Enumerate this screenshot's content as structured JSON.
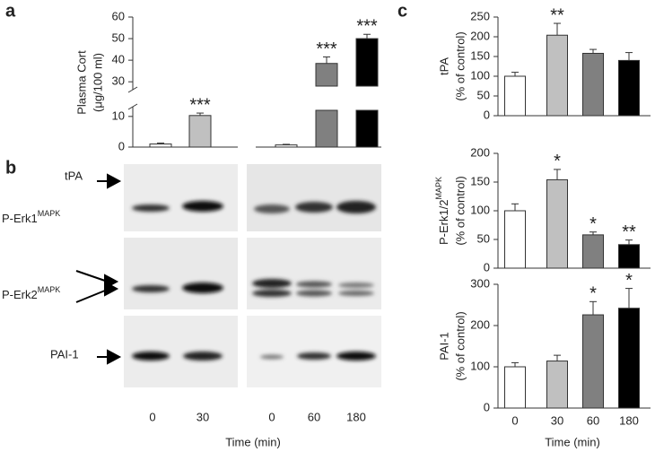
{
  "panels": [
    "a",
    "b",
    "c"
  ],
  "chart_data": [
    {
      "type": "bar",
      "ylabel": [
        "Plasma Cort",
        "(μg/100 ml)"
      ],
      "categories": [
        null,
        null,
        null,
        null,
        null
      ],
      "values": [
        1,
        10.3,
        0.7,
        38.5,
        50
      ],
      "errors": [
        0.3,
        0.8,
        0.2,
        3,
        2
      ],
      "annotations": [
        null,
        "***",
        null,
        "***",
        "***"
      ],
      "colors": [
        "#ffffff",
        "#c0c0c0",
        "#ffffff",
        "#808080",
        "#000000"
      ],
      "ylim": [
        0,
        60
      ],
      "ybreak": [
        12,
        28
      ],
      "yticks": [
        0,
        10,
        30,
        40,
        50,
        60
      ]
    },
    {
      "type": "bar",
      "ylabel": [
        "tPA",
        "(% of control)"
      ],
      "categories": [
        null,
        null,
        null,
        null
      ],
      "values": [
        100,
        204,
        158,
        140
      ],
      "errors": [
        10,
        30,
        10,
        20
      ],
      "annotations": [
        null,
        "**",
        null,
        null
      ],
      "colors": [
        "#ffffff",
        "#c0c0c0",
        "#808080",
        "#000000"
      ],
      "ylim": [
        0,
        250
      ],
      "yticks": [
        0,
        50,
        100,
        150,
        200,
        250
      ]
    },
    {
      "type": "bar",
      "ylabel": [
        {
          "text": "P-Erk1/2",
          "sup": "MAPK"
        },
        "(% of control)"
      ],
      "categories": [
        null,
        null,
        null,
        null
      ],
      "values": [
        100,
        154,
        58,
        41
      ],
      "errors": [
        12,
        18,
        5,
        8
      ],
      "annotations": [
        null,
        "*",
        "*",
        "**"
      ],
      "colors": [
        "#ffffff",
        "#c0c0c0",
        "#808080",
        "#000000"
      ],
      "ylim": [
        0,
        200
      ],
      "yticks": [
        0,
        50,
        100,
        150,
        200
      ]
    },
    {
      "type": "bar",
      "ylabel": [
        "PAI-1",
        "(% of control)"
      ],
      "categories": [
        "0",
        "30",
        "60",
        "180"
      ],
      "xlabel": "Time (min)",
      "values": [
        100,
        114,
        226,
        242
      ],
      "errors": [
        10,
        14,
        32,
        48
      ],
      "annotations": [
        null,
        null,
        "*",
        "*"
      ],
      "colors": [
        "#ffffff",
        "#c0c0c0",
        "#808080",
        "#000000"
      ],
      "ylim": [
        0,
        300
      ],
      "yticks": [
        0,
        100,
        200,
        300
      ]
    }
  ],
  "blot": {
    "rows": [
      {
        "text": "tPA"
      },
      {
        "text": "P-Erk1",
        "sup": "MAPK"
      },
      {
        "text": "P-Erk2",
        "sup": "MAPK"
      },
      {
        "text": "PAI-1"
      }
    ],
    "lanes": [
      "0",
      "30",
      "0",
      "60",
      "180"
    ],
    "xlabel": "Time (min)"
  }
}
